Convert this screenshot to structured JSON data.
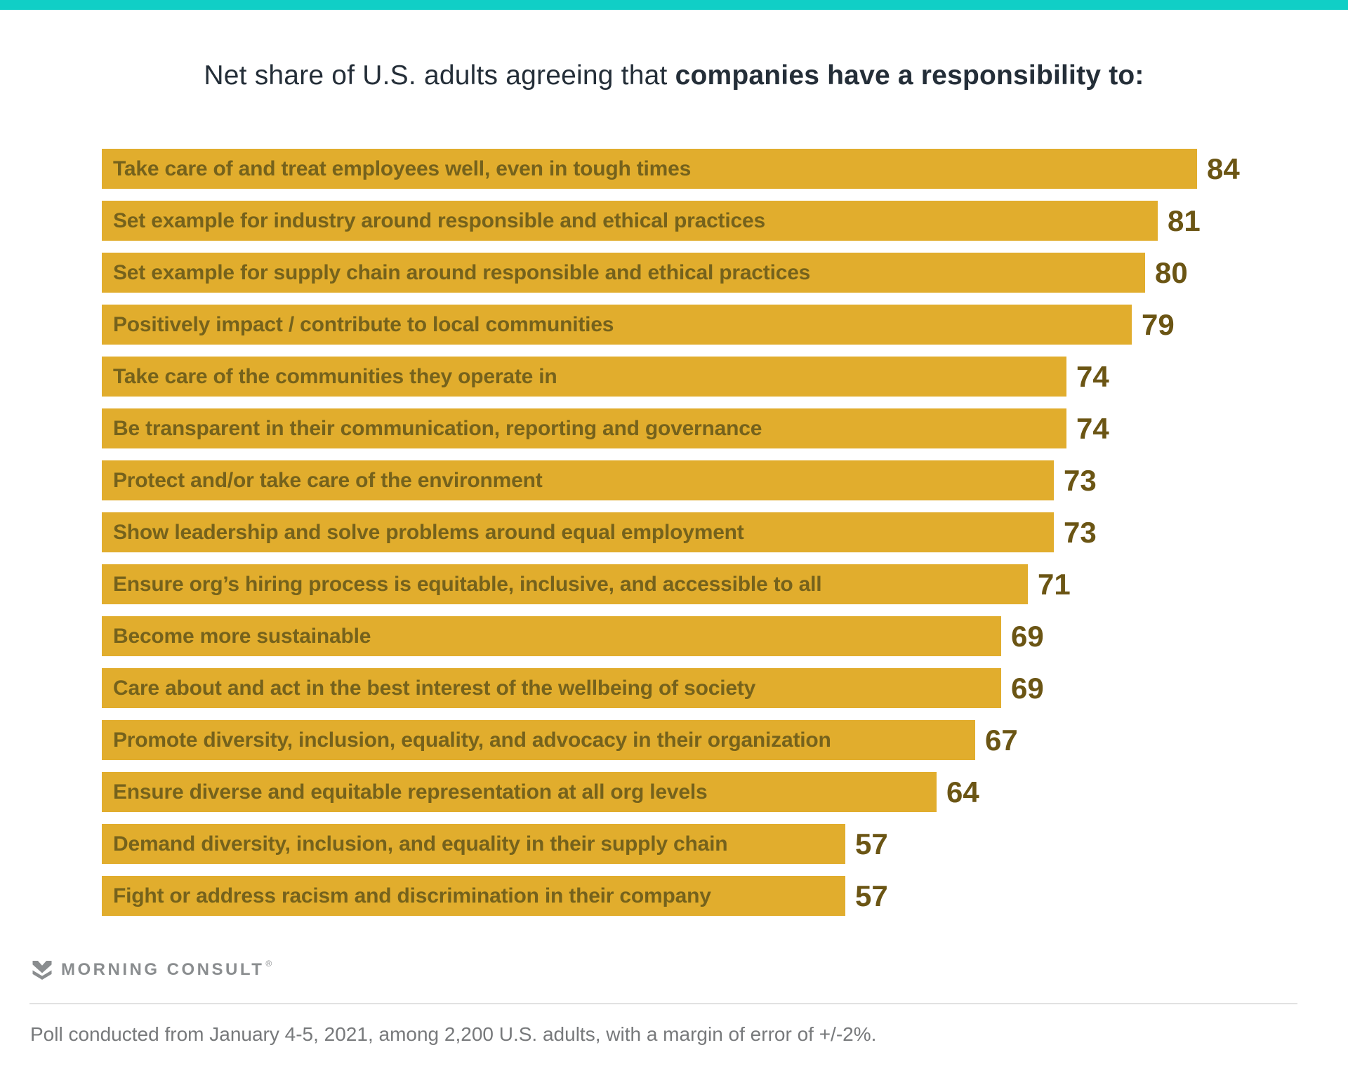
{
  "page": {
    "background": "#FFFFFF",
    "top_bar_color": "#10CFC6"
  },
  "title": {
    "regular": "Net share of U.S. adults agreeing that ",
    "bold": "companies have a responsibility to:"
  },
  "chart_data": {
    "type": "bar",
    "orientation": "horizontal",
    "title": "Net share of U.S. adults agreeing that companies have a responsibility to:",
    "categories": [
      "Take care of and treat employees well, even in tough times",
      "Set example for industry around responsible and ethical practices",
      "Set example for supply chain around responsible and ethical practices",
      "Positively impact / contribute to local communities",
      "Take care of the communities they operate in",
      "Be transparent in their communication, reporting and governance",
      "Protect and/or take care of the environment",
      "Show leadership and solve problems around equal employment",
      "Ensure org’s hiring process is equitable, inclusive, and accessible to all",
      "Become more sustainable",
      "Care about and act in the best interest of the wellbeing of society",
      "Promote diversity, inclusion, equality, and advocacy in their organization",
      "Ensure diverse and equitable representation at all org levels",
      "Demand diversity, inclusion, and equality in their supply chain",
      "Fight or address racism and discrimination in their company"
    ],
    "values": [
      84,
      81,
      80,
      79,
      74,
      74,
      73,
      73,
      71,
      69,
      69,
      67,
      64,
      57,
      57
    ],
    "xlim": [
      0,
      95
    ],
    "grid": false,
    "legend": false,
    "value_label_position": "end-of-bar",
    "bar_color": "#E1AD2D",
    "category_label_color": "#75621C",
    "value_label_color": "#6B5514"
  },
  "footer": {
    "brand": "MORNING CONSULT",
    "registered_mark": "®",
    "logo_color": "#8A8D8F",
    "note": "Poll conducted from January 4-5, 2021, among 2,200 U.S. adults, with a margin of error of +/-2%."
  }
}
